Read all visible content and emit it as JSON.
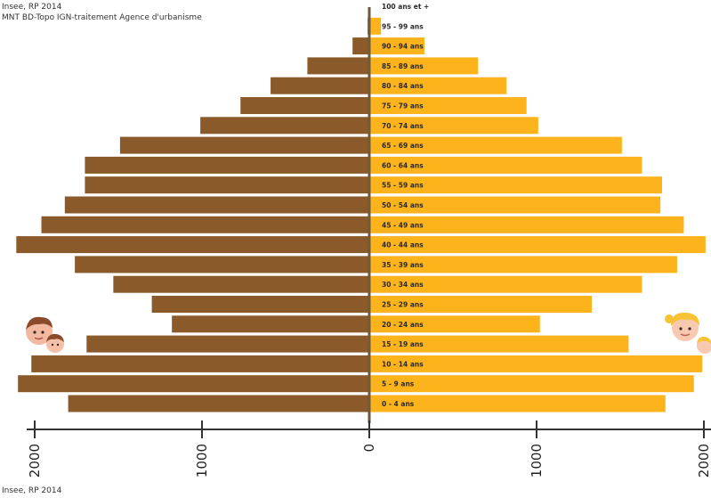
{
  "source_top": [
    "Insee, RP 2014",
    "MNT BD-Topo IGN-traitement Agence d'urbanisme"
  ],
  "source_bottom": "Insee, RP 2014",
  "chart_data": {
    "type": "bar",
    "orientation": "horizontal",
    "subtype": "population-pyramid",
    "categories": [
      "0 - 4 ans",
      "5 - 9 ans",
      "10 - 14 ans",
      "15 - 19 ans",
      "20 - 24 ans",
      "25 - 29 ans",
      "30 - 34 ans",
      "35 - 39 ans",
      "40 - 44 ans",
      "45 - 49 ans",
      "50 - 54 ans",
      "55 - 59 ans",
      "60 - 64 ans",
      "65 - 69 ans",
      "70 - 74 ans",
      "75 - 79 ans",
      "80 - 84 ans",
      "85 - 89 ans",
      "90 - 94 ans",
      "95 - 99 ans",
      "100 ans et +"
    ],
    "series": [
      {
        "values": [
          1800,
          2100,
          2020,
          1690,
          1180,
          1300,
          1530,
          1760,
          2110,
          1960,
          1820,
          1700,
          1700,
          1490,
          1010,
          770,
          590,
          370,
          100,
          10,
          0
        ],
        "color": "#8b5a2b"
      },
      {
        "values": [
          1770,
          1940,
          1990,
          1550,
          1020,
          1330,
          1630,
          1840,
          2010,
          1880,
          1740,
          1750,
          1630,
          1510,
          1010,
          940,
          820,
          650,
          330,
          70,
          0
        ],
        "color": "#fcb31c"
      }
    ],
    "xticks": [
      "2000",
      "1000",
      "0",
      "1000",
      "2000"
    ],
    "xlim": [
      -2000,
      2000
    ],
    "grid": false,
    "colors": {
      "male": "#8b5a2b",
      "female": "#fcb31c",
      "center_line": "#6e5a3c",
      "axis": "#333333"
    },
    "decorations": [
      "boy-faces-icon",
      "girl-faces-icon"
    ]
  }
}
